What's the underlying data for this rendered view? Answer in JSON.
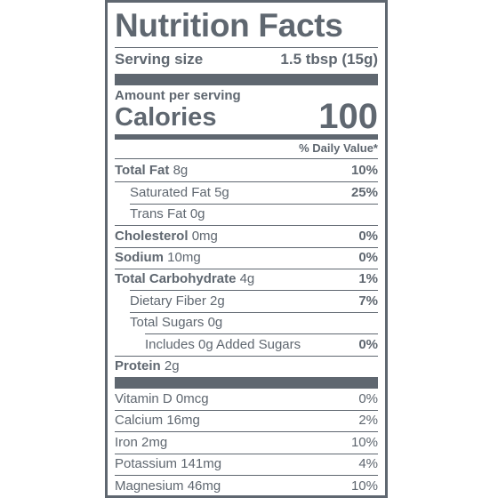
{
  "label": {
    "title": "Nutrition Facts",
    "serving_size_label": "Serving size",
    "serving_size_value": "1.5 tbsp (15g)",
    "amount_per_serving": "Amount per serving",
    "calories_label": "Calories",
    "calories_value": "100",
    "daily_value_header": "% Daily Value*",
    "nutrients": [
      {
        "name": "Total Fat",
        "amount": "8g",
        "dv": "10%"
      },
      {
        "name": "Saturated Fat",
        "amount": "5g",
        "dv": "25%"
      },
      {
        "name": "Trans Fat",
        "amount": "0g",
        "dv": ""
      },
      {
        "name": "Cholesterol",
        "amount": "0mg",
        "dv": "0%"
      },
      {
        "name": "Sodium",
        "amount": "10mg",
        "dv": "0%"
      },
      {
        "name": "Total Carbohydrate",
        "amount": "4g",
        "dv": "1%"
      },
      {
        "name": "Dietary Fiber",
        "amount": "2g",
        "dv": "7%"
      },
      {
        "name": "Total Sugars",
        "amount": "0g",
        "dv": ""
      },
      {
        "name": "Includes 0g Added Sugars",
        "amount": "",
        "dv": "0%"
      },
      {
        "name": "Protein",
        "amount": "2g",
        "dv": ""
      }
    ],
    "vitamins": [
      {
        "name": "Vitamin D 0mcg",
        "dv": "0%"
      },
      {
        "name": "Calcium 16mg",
        "dv": "2%"
      },
      {
        "name": "Iron 2mg",
        "dv": "10%"
      },
      {
        "name": "Potassium 141mg",
        "dv": "4%"
      },
      {
        "name": "Magnesium 46mg",
        "dv": "10%"
      }
    ]
  }
}
